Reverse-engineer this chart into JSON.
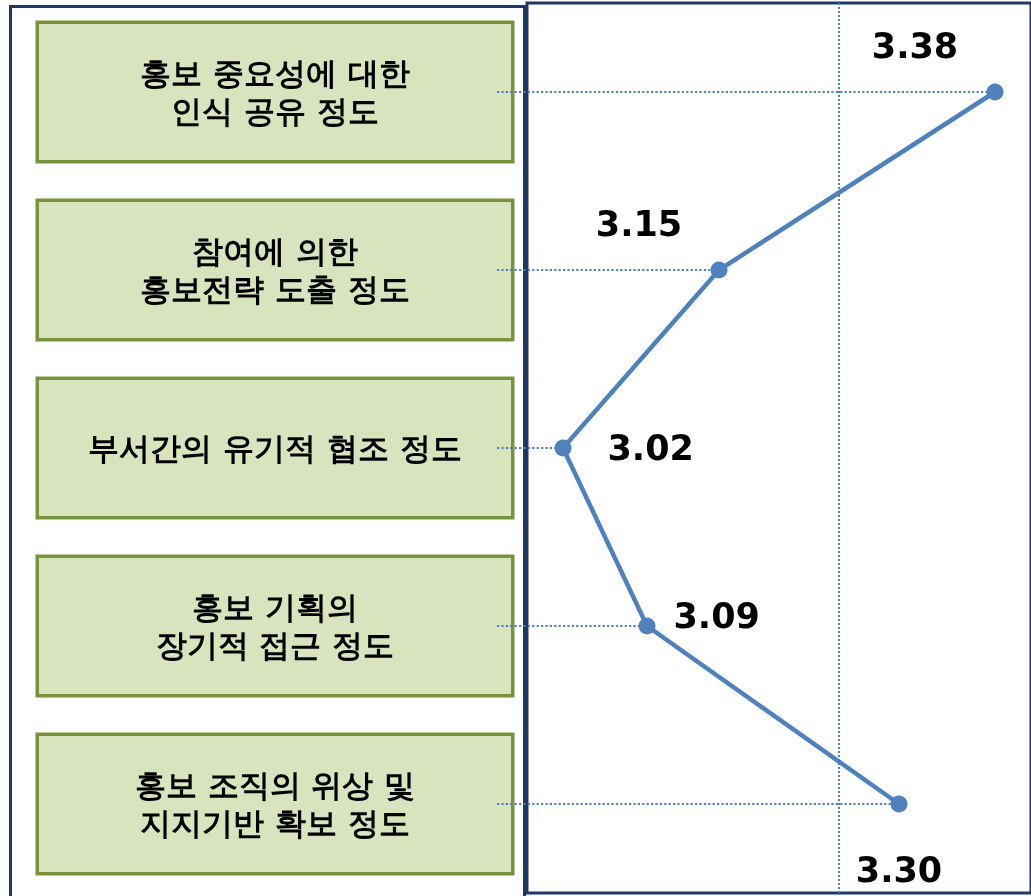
{
  "chart_data": {
    "type": "line",
    "orientation": "horizontal",
    "categories": [
      "홍보 중요성에 대한\n인식 공유 정도",
      "참여에 의한\n홍보전략 도출 정도",
      "부서간의 유기적 협조 정도",
      "홍보 기획의\n장기적 접근 정도",
      "홍보 조직의 위상 및\n지지기반 확보 정도"
    ],
    "values": [
      3.38,
      3.15,
      3.02,
      3.09,
      3.3
    ],
    "value_labels": [
      "3.38",
      "3.15",
      "3.02",
      "3.09",
      "3.30"
    ],
    "color": "#4f81bd",
    "marker": "circle",
    "xlim": [
      2.99,
      3.41
    ],
    "tick_labels": "y",
    "ref_lines": [
      {
        "axis": "x",
        "value": 3.25,
        "color": "#4f81bd",
        "line_style": "dotted"
      }
    ]
  }
}
